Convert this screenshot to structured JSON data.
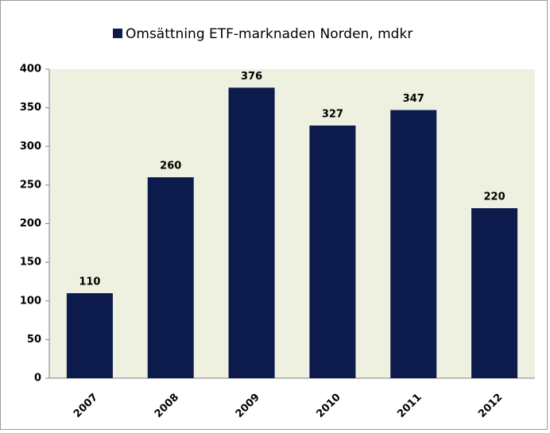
{
  "chart_data": {
    "type": "bar",
    "categories": [
      "2007",
      "2008",
      "2009",
      "2010",
      "2011",
      "2012"
    ],
    "series": [
      {
        "name": "Omsättning ETF-marknaden Norden, mdkr",
        "color": "#0c1a4c",
        "values": [
          110,
          260,
          376,
          327,
          347,
          220
        ]
      }
    ],
    "ylim": [
      0,
      400
    ],
    "yticks": [
      0,
      50,
      100,
      150,
      200,
      250,
      300,
      350,
      400
    ],
    "legend": "top",
    "plot_background": "#eef0e0",
    "data_labels": true
  }
}
